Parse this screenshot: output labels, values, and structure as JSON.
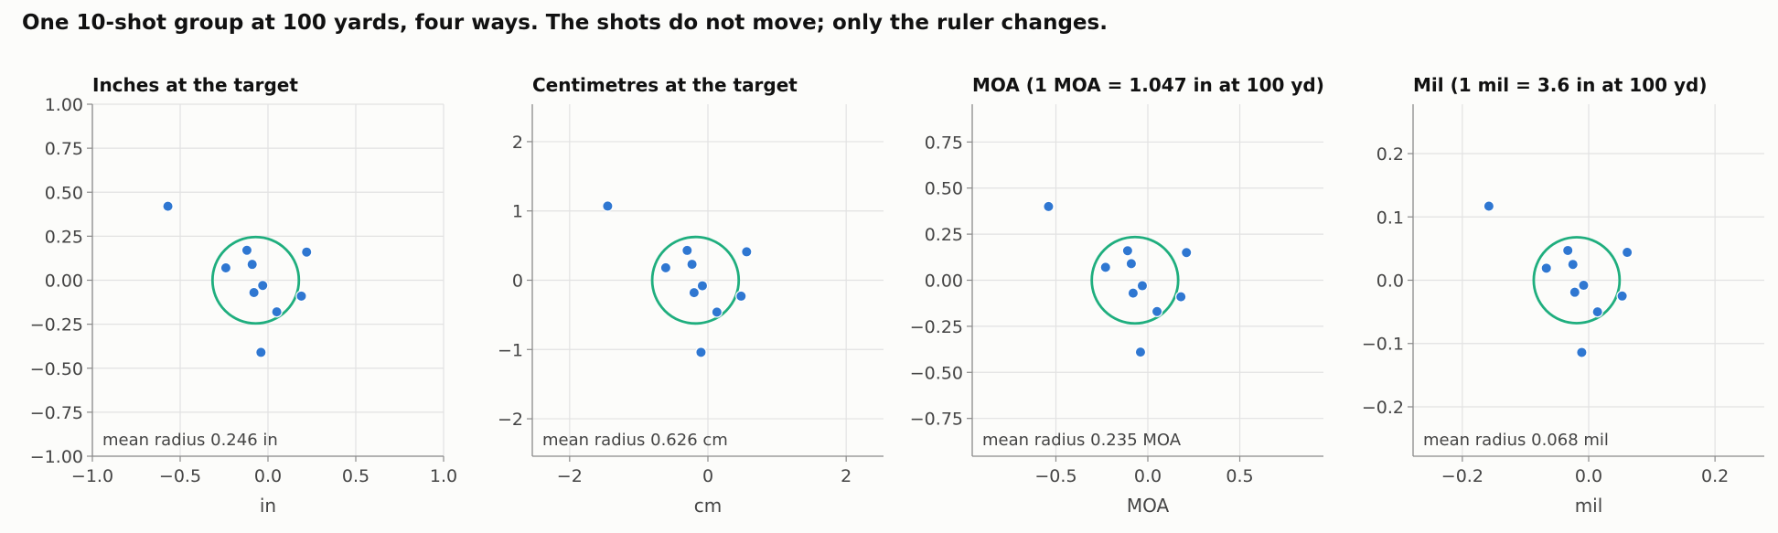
{
  "title": "One 10-shot group at 100 yards, four ways. The shots do not move; only the ruler changes.",
  "colors": {
    "shot": "#2f77d1",
    "circle": "#1fae7e",
    "background": "#fcfcfa"
  },
  "chart_data": [
    {
      "type": "scatter",
      "title": "Inches at the target",
      "xlabel": "in",
      "ylabel": "",
      "xlim": [
        -1.0,
        1.0
      ],
      "ylim": [
        -1.0,
        1.0
      ],
      "xticks": [
        -1.0,
        -0.5,
        0.0,
        0.5,
        1.0
      ],
      "xtick_labels": [
        "−1.0",
        "−0.5",
        "0.0",
        "0.5",
        "1.0"
      ],
      "yticks": [
        -1.0,
        -0.75,
        -0.5,
        -0.25,
        0.0,
        0.25,
        0.5,
        0.75,
        1.0
      ],
      "ytick_labels": [
        "−1.00",
        "−0.75",
        "−0.50",
        "−0.25",
        "0.00",
        "0.25",
        "0.50",
        "0.75",
        "1.00"
      ],
      "grid": true,
      "points": {
        "x": [
          -0.57,
          -0.12,
          -0.09,
          -0.24,
          -0.03,
          -0.08,
          0.22,
          0.19,
          0.05,
          -0.04
        ],
        "y": [
          0.42,
          0.17,
          0.09,
          0.07,
          -0.03,
          -0.07,
          0.16,
          -0.09,
          -0.18,
          -0.41
        ]
      },
      "circle": {
        "center": [
          -0.07,
          0.0
        ],
        "radius": 0.246
      },
      "annotation": "mean radius 0.246 in"
    },
    {
      "type": "scatter",
      "title": "Centimetres at the target",
      "xlabel": "cm",
      "ylabel": "",
      "xlim": [
        -2.54,
        2.54
      ],
      "ylim": [
        -2.54,
        2.54
      ],
      "xticks": [
        -2,
        0,
        2
      ],
      "xtick_labels": [
        "−2",
        "0",
        "2"
      ],
      "yticks": [
        -2,
        -1,
        0,
        1,
        2
      ],
      "ytick_labels": [
        "−2",
        "−1",
        "0",
        "1",
        "2"
      ],
      "grid": true,
      "points": {
        "x": [
          -1.45,
          -0.3,
          -0.23,
          -0.61,
          -0.08,
          -0.2,
          0.56,
          0.48,
          0.13,
          -0.1
        ],
        "y": [
          1.07,
          0.43,
          0.23,
          0.18,
          -0.08,
          -0.18,
          0.41,
          -0.23,
          -0.46,
          -1.04
        ]
      },
      "circle": {
        "center": [
          -0.18,
          0.0
        ],
        "radius": 0.626
      },
      "annotation": "mean radius 0.626 cm"
    },
    {
      "type": "scatter",
      "title": "MOA (1 MOA = 1.047 in at 100 yd)",
      "xlabel": "MOA",
      "ylabel": "",
      "xlim": [
        -0.955,
        0.955
      ],
      "ylim": [
        -0.955,
        0.955
      ],
      "xticks": [
        -0.5,
        0.0,
        0.5
      ],
      "xtick_labels": [
        "−0.5",
        "0.0",
        "0.5"
      ],
      "yticks": [
        -0.75,
        -0.5,
        -0.25,
        0.0,
        0.25,
        0.5,
        0.75
      ],
      "ytick_labels": [
        "−0.75",
        "−0.50",
        "−0.25",
        "0.00",
        "0.25",
        "0.50",
        "0.75"
      ],
      "grid": true,
      "points": {
        "x": [
          -0.54,
          -0.11,
          -0.09,
          -0.23,
          -0.03,
          -0.08,
          0.21,
          0.18,
          0.05,
          -0.04
        ],
        "y": [
          0.4,
          0.16,
          0.09,
          0.07,
          -0.03,
          -0.07,
          0.15,
          -0.09,
          -0.17,
          -0.39
        ]
      },
      "circle": {
        "center": [
          -0.07,
          0.0
        ],
        "radius": 0.235
      },
      "annotation": "mean radius 0.235 MOA"
    },
    {
      "type": "scatter",
      "title": "Mil (1 mil = 3.6 in at 100 yd)",
      "xlabel": "mil",
      "ylabel": "",
      "xlim": [
        -0.278,
        0.278
      ],
      "ylim": [
        -0.278,
        0.278
      ],
      "xticks": [
        -0.2,
        0.0,
        0.2
      ],
      "xtick_labels": [
        "−0.2",
        "0.0",
        "0.2"
      ],
      "yticks": [
        -0.2,
        -0.1,
        0.0,
        0.1,
        0.2
      ],
      "ytick_labels": [
        "−0.2",
        "−0.1",
        "0.0",
        "0.1",
        "0.2"
      ],
      "grid": true,
      "points": {
        "x": [
          -0.158,
          -0.033,
          -0.025,
          -0.067,
          -0.008,
          -0.022,
          0.061,
          0.053,
          0.014,
          -0.011
        ],
        "y": [
          0.117,
          0.047,
          0.025,
          0.019,
          -0.008,
          -0.019,
          0.044,
          -0.025,
          -0.05,
          -0.114
        ]
      },
      "circle": {
        "center": [
          -0.019,
          0.0
        ],
        "radius": 0.068
      },
      "annotation": "mean radius 0.068 mil"
    }
  ]
}
